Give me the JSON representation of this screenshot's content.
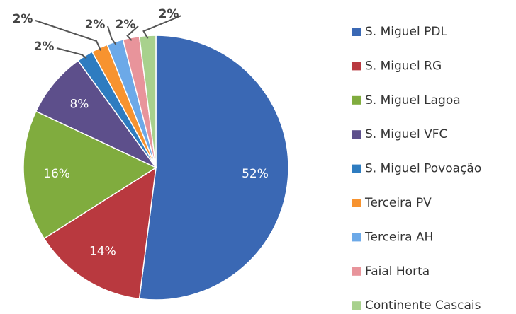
{
  "chart_data": {
    "type": "pie",
    "categories": [
      "S. Miguel PDL",
      "S. Miguel RG",
      "S. Miguel Lagoa",
      "S. Miguel VFC",
      "S. Miguel Povoação",
      "Terceira PV",
      "Terceira AH",
      "Faial Horta",
      "Continente Cascais"
    ],
    "values": [
      52,
      14,
      16,
      8,
      2,
      2,
      2,
      2,
      2
    ],
    "value_labels": [
      "52%",
      "14%",
      "16%",
      "8%",
      "2%",
      "2%",
      "2%",
      "2%",
      "2%"
    ],
    "colors": [
      "#3a68b4",
      "#b9393f",
      "#80ac3e",
      "#5d4f8b",
      "#2e7cc0",
      "#f7932f",
      "#6ca9e8",
      "#e8949b",
      "#a8d18d"
    ],
    "legend": "right"
  }
}
